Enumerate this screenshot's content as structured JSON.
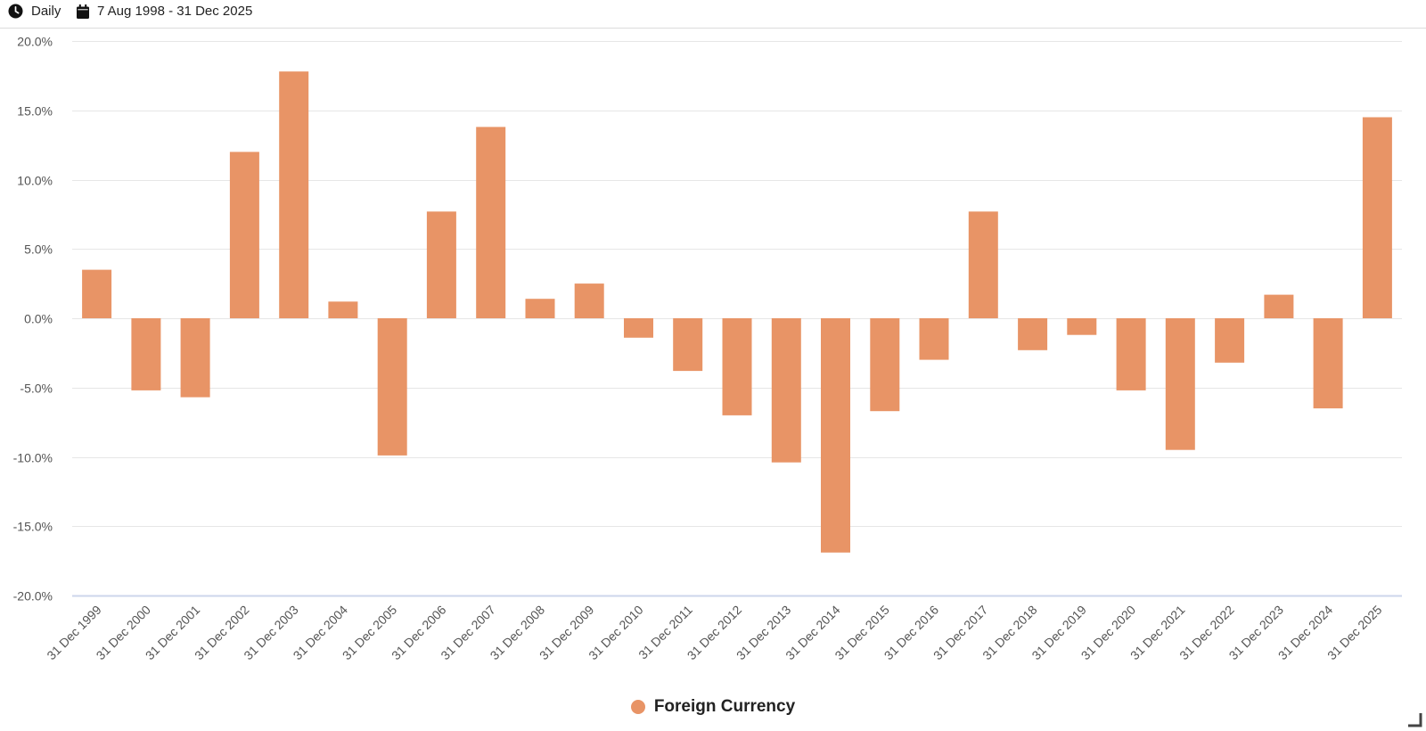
{
  "toolbar": {
    "frequency": "Daily",
    "date_range": "7 Aug 1998 - 31 Dec 2025"
  },
  "colors": {
    "bar": "#e89466",
    "grid": "#e6e6e6",
    "axis": "#ccd6eb",
    "label": "#555555"
  },
  "chart_data": {
    "type": "bar",
    "title": "",
    "xlabel": "",
    "ylabel": "",
    "ylim": [
      -20,
      20
    ],
    "yticks": [
      20,
      15,
      10,
      5,
      0,
      -5,
      -10,
      -15,
      -20
    ],
    "ytick_labels": [
      "20.0%",
      "15.0%",
      "10.0%",
      "5.0%",
      "0.0%",
      "-5.0%",
      "-10.0%",
      "-15.0%",
      "-20.0%"
    ],
    "categories": [
      "31 Dec 1999",
      "31 Dec 2000",
      "31 Dec 2001",
      "31 Dec 2002",
      "31 Dec 2003",
      "31 Dec 2004",
      "31 Dec 2005",
      "31 Dec 2006",
      "31 Dec 2007",
      "31 Dec 2008",
      "31 Dec 2009",
      "31 Dec 2010",
      "31 Dec 2011",
      "31 Dec 2012",
      "31 Dec 2013",
      "31 Dec 2014",
      "31 Dec 2015",
      "31 Dec 2016",
      "31 Dec 2017",
      "31 Dec 2018",
      "31 Dec 2019",
      "31 Dec 2020",
      "31 Dec 2021",
      "31 Dec 2022",
      "31 Dec 2023",
      "31 Dec 2024",
      "31 Dec 2025"
    ],
    "series": [
      {
        "name": "Foreign Currency",
        "values": [
          3.5,
          -5.2,
          -5.7,
          12.0,
          17.8,
          1.2,
          -9.9,
          7.7,
          13.8,
          1.4,
          2.5,
          -1.4,
          -3.8,
          -7.0,
          -10.4,
          -16.9,
          -6.7,
          -3.0,
          7.7,
          -2.3,
          -1.2,
          -5.2,
          -9.5,
          -3.2,
          1.7,
          -6.5,
          14.5
        ]
      }
    ],
    "legend": "bottom-center",
    "grid": true
  }
}
